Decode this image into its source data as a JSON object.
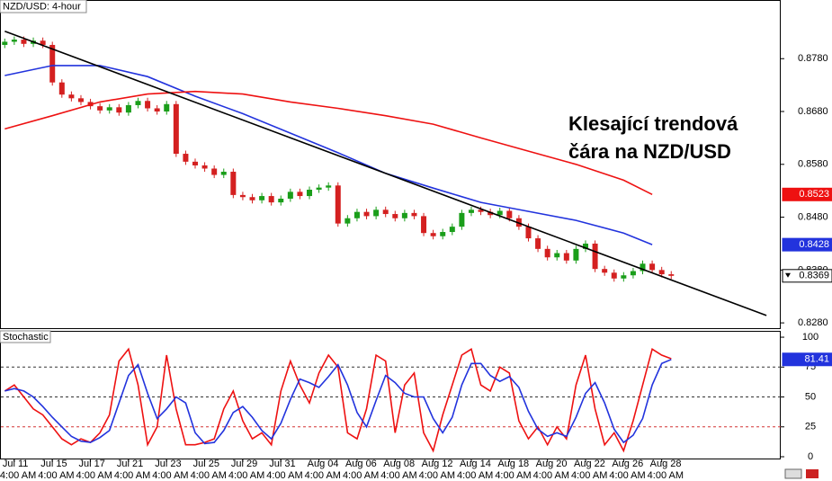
{
  "chart_data": [
    {
      "type": "candlestick",
      "title": "NZD/USD: 4-hour",
      "annotation": [
        "Klesající trendová",
        "čára na NZD/USD"
      ],
      "categories": [
        null,
        "Jul 11",
        null,
        null,
        null,
        "Jul 15",
        null,
        null,
        null,
        "Jul 17",
        null,
        null,
        null,
        "Jul 21",
        null,
        null,
        null,
        "Jul 23",
        null,
        null,
        null,
        "Jul 25",
        null,
        null,
        null,
        "Jul 29",
        null,
        null,
        null,
        "Jul 31",
        null,
        null,
        null,
        "Aug 04",
        null,
        null,
        null,
        "Aug 06",
        null,
        null,
        null,
        "Aug 08",
        null,
        null,
        null,
        "Aug 12",
        null,
        null,
        null,
        "Aug 14",
        null,
        null,
        null,
        "Aug 18",
        null,
        null,
        null,
        "Aug 20",
        null,
        null,
        null,
        "Aug 22",
        null,
        null,
        null,
        "Aug 26",
        null,
        null,
        null,
        "Aug 28",
        null
      ],
      "time_label": "4:00 AM",
      "xlim": [
        -0.5,
        81.5
      ],
      "ylim": [
        0.827,
        0.8891
      ],
      "yticks": [
        {
          "value": 0.878,
          "label": "0.8780"
        },
        {
          "value": 0.868,
          "label": "0.8680"
        },
        {
          "value": 0.858,
          "label": "0.8580"
        },
        {
          "value": 0.848,
          "label": "0.8480"
        },
        {
          "value": 0.838,
          "label": "0.8380"
        },
        {
          "value": 0.828,
          "label": "0.8280"
        }
      ],
      "up_color": "#1a9e1a",
      "down_color": "#d42020",
      "candles": {
        "open": [
          0.8806,
          0.8812,
          0.8816,
          0.8808,
          0.8814,
          0.8806,
          0.8735,
          0.8712,
          0.8705,
          0.8698,
          0.869,
          0.8682,
          0.8688,
          0.8678,
          0.8692,
          0.87,
          0.8686,
          0.868,
          0.8694,
          0.86,
          0.8585,
          0.8578,
          0.8572,
          0.856,
          0.8566,
          0.8522,
          0.8518,
          0.8512,
          0.852,
          0.8508,
          0.8515,
          0.8528,
          0.852,
          0.8532,
          0.8536,
          0.854,
          0.8468,
          0.8478,
          0.849,
          0.8482,
          0.8494,
          0.8486,
          0.8478,
          0.8488,
          0.8482,
          0.845,
          0.8444,
          0.8452,
          0.8462,
          0.8488,
          0.8494,
          0.849,
          0.8484,
          0.8492,
          0.8478,
          0.8462,
          0.844,
          0.842,
          0.8404,
          0.8412,
          0.8398,
          0.842,
          0.843,
          0.8382,
          0.8375,
          0.8364,
          0.837,
          0.8378,
          0.8392,
          0.838,
          0.8372
        ],
        "high": [
          0.8818,
          0.8822,
          0.8822,
          0.882,
          0.882,
          0.8812,
          0.8741,
          0.8718,
          0.8711,
          0.8704,
          0.8696,
          0.8694,
          0.8694,
          0.8698,
          0.8706,
          0.8706,
          0.8692,
          0.87,
          0.87,
          0.8606,
          0.8591,
          0.8584,
          0.8578,
          0.8572,
          0.8572,
          0.8528,
          0.8524,
          0.8526,
          0.8526,
          0.8521,
          0.8534,
          0.8534,
          0.8538,
          0.8542,
          0.8546,
          0.8546,
          0.8484,
          0.8496,
          0.8496,
          0.85,
          0.85,
          0.8492,
          0.8494,
          0.8494,
          0.8488,
          0.8456,
          0.8458,
          0.8468,
          0.8494,
          0.85,
          0.85,
          0.8496,
          0.8498,
          0.8498,
          0.8484,
          0.8468,
          0.8446,
          0.8426,
          0.8418,
          0.8418,
          0.8426,
          0.8436,
          0.8436,
          0.8388,
          0.8381,
          0.8376,
          0.8384,
          0.8398,
          0.8398,
          0.8386,
          0.8378
        ],
        "low": [
          0.88,
          0.8806,
          0.8802,
          0.8802,
          0.88,
          0.8729,
          0.8706,
          0.8699,
          0.8692,
          0.8684,
          0.8676,
          0.8676,
          0.8672,
          0.8672,
          0.8686,
          0.868,
          0.8674,
          0.8674,
          0.8594,
          0.8579,
          0.8572,
          0.8566,
          0.8554,
          0.8554,
          0.8516,
          0.8512,
          0.8506,
          0.8506,
          0.8502,
          0.8502,
          0.8509,
          0.8514,
          0.8514,
          0.8526,
          0.853,
          0.8462,
          0.8462,
          0.8472,
          0.8476,
          0.8476,
          0.848,
          0.8472,
          0.8472,
          0.8476,
          0.8444,
          0.8438,
          0.8438,
          0.8446,
          0.8456,
          0.8482,
          0.8484,
          0.8478,
          0.8478,
          0.8472,
          0.8456,
          0.8434,
          0.8414,
          0.8398,
          0.8398,
          0.8392,
          0.8392,
          0.8414,
          0.8376,
          0.8369,
          0.8358,
          0.8358,
          0.8364,
          0.8372,
          0.8374,
          0.8366,
          0.8363
        ],
        "close": [
          0.8812,
          0.8816,
          0.8808,
          0.8814,
          0.8806,
          0.8735,
          0.8712,
          0.8705,
          0.8698,
          0.869,
          0.8682,
          0.8688,
          0.8678,
          0.8692,
          0.87,
          0.8686,
          0.868,
          0.8694,
          0.86,
          0.8585,
          0.8578,
          0.8572,
          0.856,
          0.8566,
          0.8522,
          0.8518,
          0.8512,
          0.852,
          0.8508,
          0.8515,
          0.8528,
          0.852,
          0.8532,
          0.8536,
          0.854,
          0.8468,
          0.8478,
          0.849,
          0.8482,
          0.8494,
          0.8486,
          0.8478,
          0.8488,
          0.8482,
          0.845,
          0.8444,
          0.8452,
          0.8462,
          0.8488,
          0.8494,
          0.849,
          0.8484,
          0.8492,
          0.8478,
          0.8462,
          0.844,
          0.842,
          0.8404,
          0.8412,
          0.8398,
          0.842,
          0.843,
          0.8382,
          0.8375,
          0.8364,
          0.837,
          0.8378,
          0.8392,
          0.838,
          0.8372,
          0.8369
        ]
      },
      "lines": [
        {
          "color": "#2233dd",
          "box": true,
          "x": [
            0,
            5,
            10,
            15,
            20,
            25,
            30,
            35,
            40,
            45,
            50,
            55,
            60,
            65,
            68
          ],
          "values": [
            0.8748,
            0.8767,
            0.8767,
            0.8746,
            0.8709,
            0.8676,
            0.8639,
            0.8602,
            0.8563,
            0.8535,
            0.8508,
            0.8491,
            0.8474,
            0.845,
            0.8428
          ]
        },
        {
          "color": "#ee1111",
          "box": true,
          "x": [
            0,
            5,
            10,
            15,
            20,
            25,
            30,
            35,
            40,
            45,
            50,
            55,
            60,
            65,
            68
          ],
          "values": [
            0.8647,
            0.8672,
            0.8698,
            0.8713,
            0.8718,
            0.8713,
            0.8698,
            0.8686,
            0.8672,
            0.8656,
            0.863,
            0.8605,
            0.858,
            0.855,
            0.8523
          ]
        },
        {
          "color": "#000000",
          "box": false,
          "x": [
            0,
            80
          ],
          "values": [
            0.8832,
            0.8294
          ]
        }
      ]
    },
    {
      "type": "line",
      "title": "Stochastic",
      "xlim": [
        -0.5,
        81.5
      ],
      "ylim": [
        -1.5,
        105.3
      ],
      "yticks": [
        0,
        25,
        50,
        75,
        100
      ],
      "level_colors": [
        null,
        "#d33333",
        "#333333",
        "#333333",
        null
      ],
      "series": [
        {
          "color": "#ee1111",
          "values": [
            55,
            60,
            50,
            40,
            35,
            25,
            15,
            10,
            15,
            12,
            20,
            35,
            80,
            90,
            60,
            10,
            25,
            85,
            40,
            10,
            10,
            12,
            15,
            40,
            55,
            30,
            15,
            20,
            10,
            55,
            80,
            60,
            45,
            70,
            85,
            75,
            20,
            15,
            40,
            85,
            80,
            20,
            60,
            70,
            20,
            5,
            35,
            60,
            85,
            90,
            60,
            55,
            75,
            70,
            30,
            15,
            25,
            10,
            25,
            15,
            60,
            85,
            40,
            10,
            20,
            5,
            30,
            60,
            90,
            85,
            82
          ]
        },
        {
          "color": "#2233dd",
          "box": true,
          "values": [
            55,
            57,
            55,
            50,
            42,
            33,
            25,
            17,
            13,
            12,
            16,
            22,
            45,
            68,
            77,
            53,
            32,
            40,
            50,
            45,
            20,
            11,
            12,
            22,
            37,
            42,
            33,
            22,
            15,
            28,
            48,
            65,
            62,
            58,
            67,
            77,
            60,
            37,
            25,
            47,
            68,
            62,
            53,
            50,
            50,
            32,
            20,
            33,
            60,
            78,
            78,
            68,
            63,
            67,
            58,
            38,
            23,
            17,
            20,
            17,
            33,
            53,
            62,
            45,
            23,
            12,
            18,
            32,
            60,
            78,
            81.41
          ]
        }
      ]
    }
  ]
}
